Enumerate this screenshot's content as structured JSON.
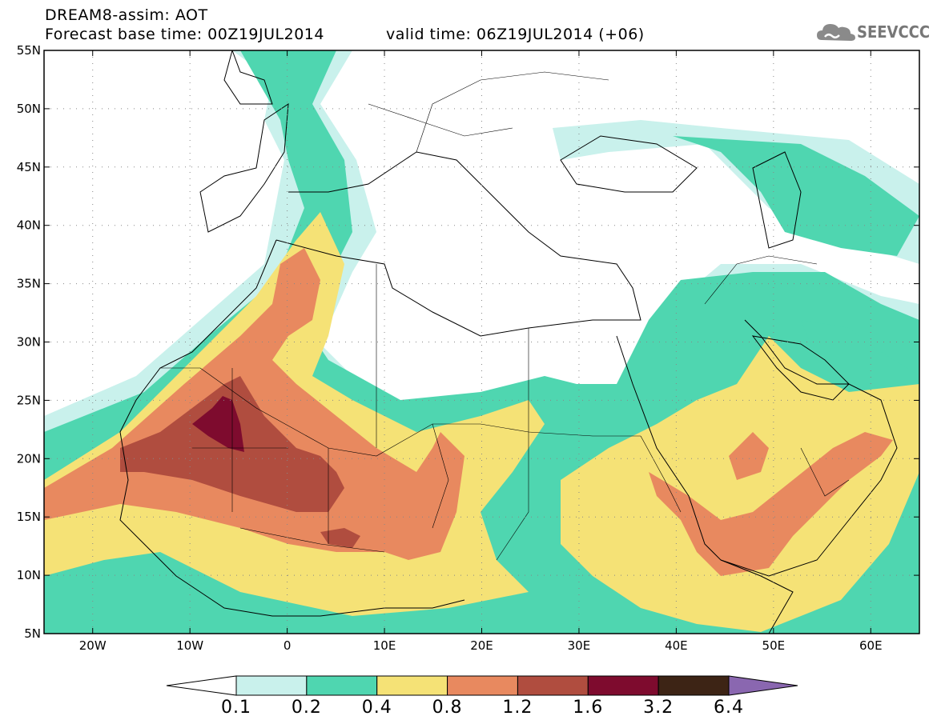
{
  "header": {
    "model_line": "DREAM8-assim: AOT",
    "base_time_line": "Forecast base time: 00Z19JUL2014",
    "valid_time_line": "valid time: 06Z19JUL2014 (+06)"
  },
  "logo": {
    "text": "SEEVCCC",
    "icon": "cloud-icon"
  },
  "map": {
    "lon_range": [
      -25,
      65
    ],
    "lat_range": [
      5,
      55
    ],
    "lat_ticks": [
      "5N",
      "10N",
      "15N",
      "20N",
      "25N",
      "30N",
      "35N",
      "40N",
      "45N",
      "50N",
      "55N"
    ],
    "lon_ticks": [
      "20W",
      "10W",
      "0",
      "10E",
      "20E",
      "30E",
      "40E",
      "50E",
      "60E"
    ],
    "grid": "dotted"
  },
  "colorbar": {
    "labels": [
      "0.1",
      "0.2",
      "0.4",
      "0.8",
      "1.2",
      "1.6",
      "3.2",
      "6.4"
    ],
    "colors": [
      "#ffffff",
      "#c9f1ec",
      "#4fd6b0",
      "#f5e276",
      "#e8895f",
      "#b04d3f",
      "#7e0b2e",
      "#3d2415",
      "#8a67b0"
    ]
  }
}
